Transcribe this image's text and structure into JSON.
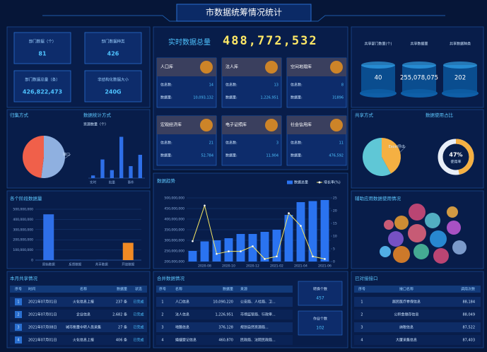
{
  "header": {
    "title": "市数据统筹情况统计"
  },
  "dept_stats": [
    {
      "label": "部门数据（个）",
      "value": "81"
    },
    {
      "label": "部门数据种类",
      "value": "426"
    },
    {
      "label": "部门数据总量（条）",
      "value": "426,822,473"
    },
    {
      "label": "非结构化数据大小",
      "value": "240G"
    }
  ],
  "realtime": {
    "label": "实时数据总量",
    "value": "488,772,532"
  },
  "libraries": [
    {
      "name": "人口库",
      "count_label": "信息数:",
      "count": "14",
      "volume_label": "数据量:",
      "volume": "10,093,132"
    },
    {
      "name": "法人库",
      "count_label": "信息数:",
      "count": "13",
      "volume_label": "数据量:",
      "volume": "1,226,951"
    },
    {
      "name": "空间地理库",
      "count_label": "信息数:",
      "count": "8",
      "volume_label": "数据量:",
      "volume": "31896"
    },
    {
      "name": "宏观经济库",
      "count_label": "信息数:",
      "count": "21",
      "volume_label": "数据量:",
      "volume": "52,784"
    },
    {
      "name": "电子证照库",
      "count_label": "信息数:",
      "count": "3",
      "volume_label": "数据量:",
      "volume": "11,904"
    },
    {
      "name": "社会信用库",
      "count_label": "信息数:",
      "count": "11",
      "volume_label": "数据量:",
      "volume": "476,592"
    }
  ],
  "shared_stats": [
    {
      "label": "共享部门数量(个)",
      "value": "40"
    },
    {
      "label": "共享数据量",
      "value": "255,078,075"
    },
    {
      "label": "共享数据种类",
      "value": "202"
    }
  ],
  "panels": {
    "bubbles": "辅助应用数据使用情况",
    "monthly": "本月共享情况",
    "merged": "合并数据情况",
    "interfaces": "已对接接口"
  },
  "chart_data": [
    {
      "type": "pie",
      "title": "归集方式",
      "categories": [
        "接口",
        null
      ],
      "values": [
        52,
        48
      ],
      "colors": [
        "#8fb0e0",
        "#f0604a"
      ]
    },
    {
      "type": "bar",
      "title": "数据统计方式",
      "y_label": "资源数量（个）",
      "categories": [
        "实时",
        null,
        "批量",
        null,
        "事件",
        null
      ],
      "values": [
        4,
        28,
        12,
        62,
        18,
        35
      ],
      "color": "#2e6fe8",
      "ylim": [
        0,
        70
      ]
    },
    {
      "type": "bar",
      "title": "各个阶段数据量",
      "categories": [
        "原始数据",
        "反馈数据",
        "共享数据",
        "开放数据"
      ],
      "values": [
        450000000,
        2000000,
        1000000,
        170000000
      ],
      "colors": [
        "#2e6fe8",
        "#2e6fe8",
        "#2e6fe8",
        "#f08a24"
      ],
      "ylim": [
        0,
        500000000
      ],
      "yticks": [
        0,
        {
          "value": 100000000,
          "label": "100,000,000"
        },
        {
          "value": 200000000,
          "label": "200,000,000"
        },
        {
          "value": 300000000,
          "label": "300,000,000"
        },
        {
          "value": 400000000,
          "label": "400,000,000"
        },
        {
          "value": 500000000,
          "label": "500,000,000"
        }
      ],
      "grid": true
    },
    {
      "type": "combo",
      "title": "数据趋势",
      "categories": [
        null,
        "2020-08",
        null,
        "2020-10",
        null,
        "2020-12",
        null,
        "2021-02",
        null,
        "2021-04",
        null,
        "2021-06"
      ],
      "series": [
        {
          "name": "数据总量",
          "type": "bar",
          "color": "#2a73f0",
          "values": [
            250000000,
            295000000,
            300000000,
            310000000,
            330000000,
            330000000,
            340000000,
            350000000,
            420000000,
            480000000,
            485000000,
            490000000
          ]
        },
        {
          "name": "增长率(%)",
          "type": "line",
          "axis": "y2",
          "color": "#f5e663",
          "values": [
            8,
            22,
            3,
            4,
            4,
            6,
            1,
            2,
            19,
            14,
            2,
            1
          ]
        }
      ],
      "ylim": [
        200000000,
        500000000
      ],
      "yticks": [
        {
          "value": 200000000,
          "label": "200,000,000"
        },
        {
          "value": 250000000,
          "label": "250,000,000"
        },
        {
          "value": 300000000,
          "label": "300,000,000"
        },
        {
          "value": 350000000,
          "label": "350,000,000"
        },
        {
          "value": 400000000,
          "label": "400,000,000"
        },
        {
          "value": 450000000,
          "label": "450,000,000"
        },
        {
          "value": 500000000,
          "label": "500,000,000"
        }
      ],
      "y2lim": [
        0,
        25
      ],
      "y2ticks": [
        0,
        5,
        10,
        15,
        20,
        25
      ],
      "grid": true,
      "legend": "top-right"
    },
    {
      "type": "pie",
      "title": "共享方式",
      "categories": [
        "Excel导出",
        null
      ],
      "values": [
        42,
        58
      ],
      "colors": [
        "#f5b042",
        "#5fc7d6"
      ]
    },
    {
      "type": "gauge",
      "title": "数据使用占比",
      "value": 47,
      "value_label": "47%",
      "subtitle": "使用率",
      "color": "#f5b042"
    }
  ],
  "monthly_table": {
    "columns": [
      "序号",
      "时间",
      "名称",
      "数据量",
      "状态"
    ],
    "rows": [
      [
        "1",
        "2021年07月01日",
        "火化信息上报",
        "237 条",
        "已完成"
      ],
      [
        "2",
        "2021年07月01日",
        "企业信息",
        "2,682 条",
        "已完成"
      ],
      [
        "3",
        "2021年07月08日",
        "城市衡量中转人员采集",
        "27 条",
        "已完成"
      ],
      [
        "4",
        "2021年07月01日",
        "火化信息上报",
        "406 条",
        "已完成"
      ]
    ]
  },
  "merged_table": {
    "columns": [
      "序号",
      "名称",
      "数据量",
      "来源"
    ],
    "rows": [
      [
        "1",
        "人口信息",
        "10,090,220",
        "公安局、人社局、卫..."
      ],
      [
        "2",
        "法人信息",
        "1,226,951",
        "市场监管局、行政审..."
      ],
      [
        "3",
        "地路信息",
        "376,128",
        "规划自然资源局..."
      ],
      [
        "4",
        "婚姻登记信息",
        "460,870",
        "民政局、法院民政局..."
      ]
    ]
  },
  "merged_side": [
    {
      "label": "转换个数",
      "value": "457"
    },
    {
      "label": "作业个数",
      "value": "102"
    }
  ],
  "interface_table": {
    "columns": [
      "序号",
      "接口名称",
      "调用次数"
    ],
    "rows": [
      [
        "1",
        "居民医疗参保信息",
        "88,184"
      ],
      [
        "2",
        "公积金缴存信息",
        "88,049"
      ],
      [
        "3",
        "纳税信息",
        "87,522"
      ],
      [
        "4",
        "大厦采集信息",
        "87,403"
      ]
    ]
  }
}
